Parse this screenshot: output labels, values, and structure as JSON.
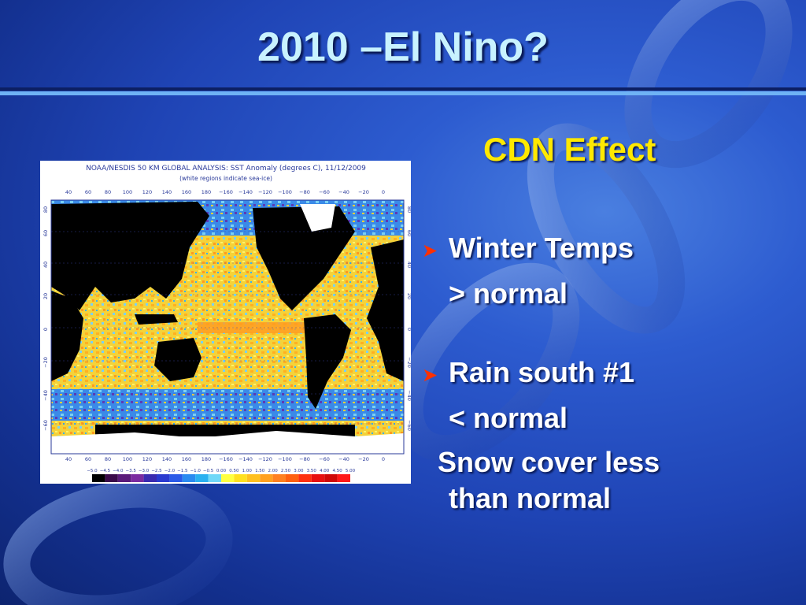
{
  "slide": {
    "title": "2010 –El Nino?",
    "subtitle": "CDN Effect",
    "bullets": [
      {
        "line1": "Winter Temps",
        "line2": "> normal"
      },
      {
        "line1": "Rain  south #1",
        "line2": "< normal"
      }
    ],
    "extra_line1": "Snow cover less",
    "extra_line2": "than normal",
    "bullet_icon": "arrow-bullet-icon",
    "colors": {
      "title": "#c8f2ff",
      "subtitle": "#ffe900",
      "text": "#ffffff",
      "bullet": "#ff3000"
    }
  },
  "map": {
    "title": "NOAA/NESDIS 50 KM GLOBAL ANALYSIS: SST Anomaly (degrees C), 11/12/2009",
    "note": "(white regions indicate sea-ice)",
    "lon_labels": [
      "40",
      "60",
      "80",
      "100",
      "120",
      "140",
      "160",
      "180",
      "−160",
      "−140",
      "−120",
      "−100",
      "−80",
      "−60",
      "−40",
      "−20",
      "0"
    ],
    "lat_labels": [
      "80",
      "60",
      "40",
      "20",
      "0",
      "−20",
      "−40",
      "−60"
    ],
    "colorbar_labels": [
      "−5.0",
      "−4.5",
      "−4.0",
      "−3.5",
      "−3.0",
      "−2.5",
      "−2.0",
      "−1.5",
      "−1.0",
      "−0.5",
      "0.00",
      "0.50",
      "1.00",
      "1.50",
      "2.00",
      "2.50",
      "3.00",
      "3.50",
      "4.00",
      "4.50",
      "5.00"
    ],
    "colorbar_colors": [
      "#000000",
      "#3a0a4a",
      "#5a1a7a",
      "#7a2aa0",
      "#3a2ab0",
      "#2a3ad0",
      "#2a5ae8",
      "#2a8af0",
      "#2ab0f0",
      "#70d8f8",
      "#ffff40",
      "#ffe020",
      "#ffc020",
      "#ffa020",
      "#ff8020",
      "#ff6010",
      "#ff3010",
      "#e81010",
      "#d00808",
      "#ff1818"
    ]
  }
}
